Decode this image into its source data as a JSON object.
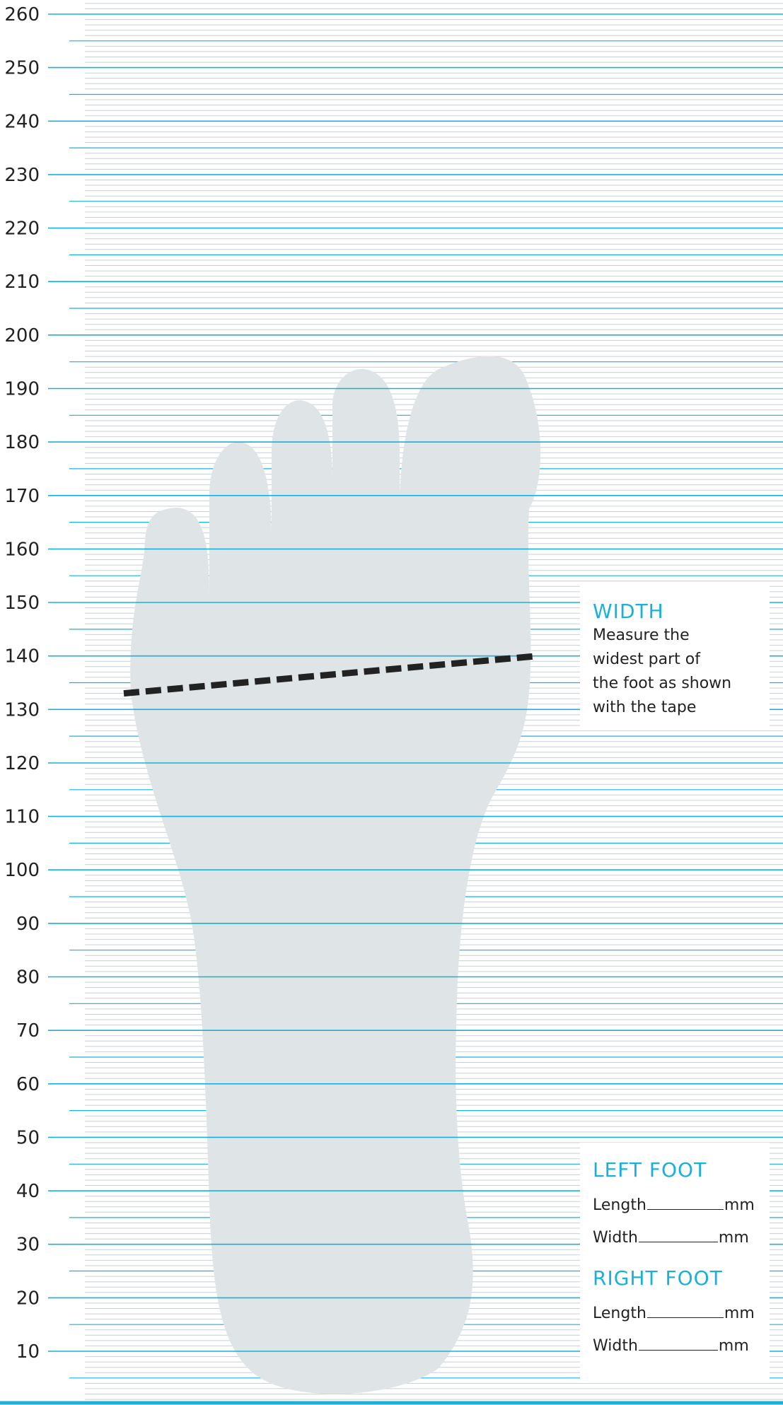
{
  "colors": {
    "major_line": "#1ab0dc",
    "minor_line": "#c9d0d3",
    "foot_fill": "#dfe4e7",
    "tape": "#222222",
    "accent_text": "#1ab0dc"
  },
  "ruler": {
    "unit": "mm",
    "labels": [
      "260",
      "250",
      "240",
      "230",
      "220",
      "210",
      "200",
      "190",
      "180",
      "170",
      "160",
      "150",
      "140",
      "130",
      "120",
      "110",
      "100",
      "90",
      "80",
      "70",
      "60",
      "50",
      "40",
      "30",
      "20",
      "10"
    ]
  },
  "tape_measure": {
    "from_mm": 133,
    "to_mm": 140
  },
  "width_panel": {
    "title": "WIDTH",
    "lines": [
      "Measure the",
      "widest part of",
      "the foot as shown",
      "with the tape"
    ]
  },
  "left_foot": {
    "title": "LEFT FOOT",
    "length_label": "Length",
    "width_label": "Width",
    "unit": "mm"
  },
  "right_foot": {
    "title": "RIGHT FOOT",
    "length_label": "Length",
    "width_label": "Width",
    "unit": "mm"
  }
}
